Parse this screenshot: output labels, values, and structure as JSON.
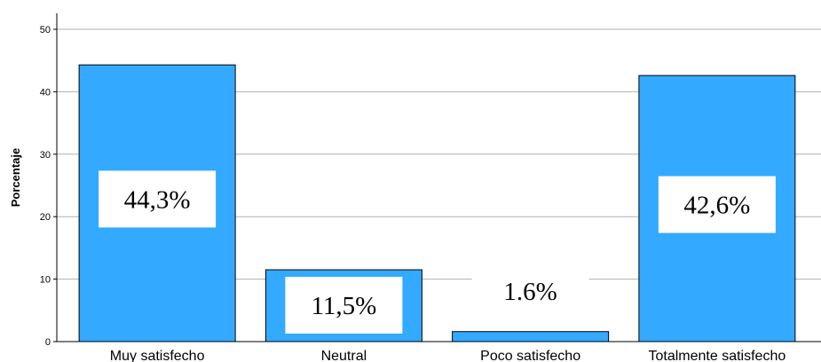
{
  "chart_data": {
    "type": "bar",
    "ylabel": "Porcentaje",
    "xlabel": "",
    "ylim": [
      0,
      50
    ],
    "yticks": [
      0,
      10,
      20,
      30,
      40,
      50
    ],
    "grid": true,
    "categories": [
      "Muy satisfecho",
      "Neutral",
      "Poco satisfecho",
      "Totalmente satisfecho"
    ],
    "values": [
      44.3,
      11.5,
      1.6,
      42.6
    ],
    "data_labels": [
      "44,3%",
      "11,5%",
      "1.6%",
      "42,6%"
    ],
    "bar_color": "#33aaff",
    "bar_edge_color": "#000000",
    "grid_color": "#b0b0b0"
  }
}
